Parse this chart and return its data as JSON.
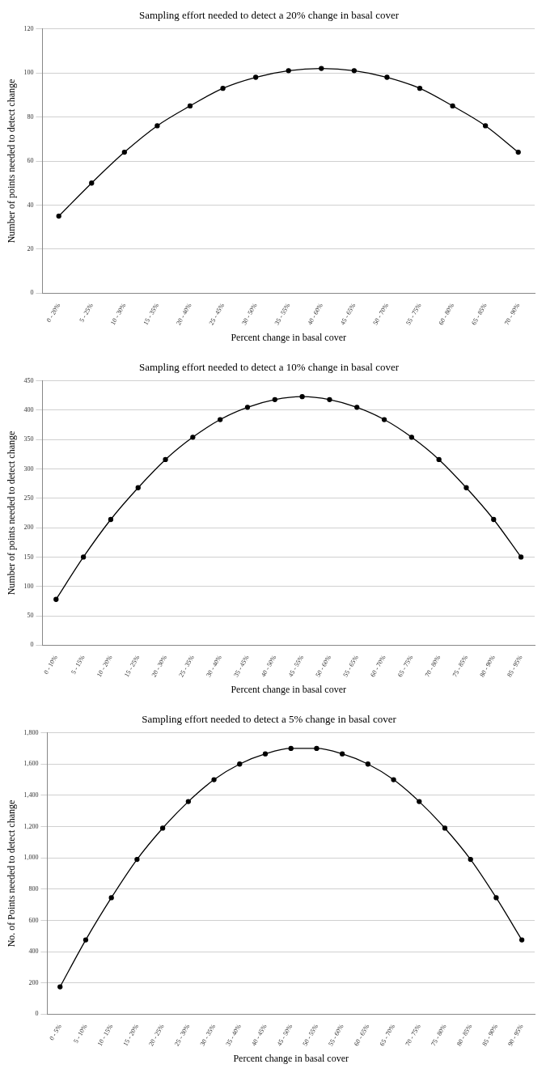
{
  "chart_data": [
    {
      "type": "line",
      "title": "Sampling effort needed to detect a 20% change in basal cover",
      "xlabel": "Percent change in basal cover",
      "ylabel": "Number of points needed to detect change",
      "categories": [
        "0 - 20%",
        "5 - 25%",
        "10 - 30%",
        "15 - 35%",
        "20 - 40%",
        "25 - 45%",
        "30 - 50%",
        "35 - 55%",
        "40 - 60%",
        "45 - 65%",
        "50 - 70%",
        "55 - 75%",
        "60 - 80%",
        "65 - 85%",
        "70 - 90%"
      ],
      "series": [
        {
          "color": "#000000",
          "values": [
            35,
            50,
            64,
            76,
            85,
            93,
            98,
            101,
            102,
            101,
            98,
            93,
            85,
            76,
            64
          ]
        }
      ],
      "ylim": [
        0,
        120
      ],
      "yticks": [
        0,
        20,
        40,
        60,
        80,
        100,
        120
      ],
      "grid": "y",
      "legend": false,
      "marker": "circle",
      "line_style": "solid"
    },
    {
      "type": "line",
      "title": "Sampling effort needed to detect a 10% change in basal cover",
      "xlabel": "Percent change in basal cover",
      "ylabel": "Number of points needed to detect change",
      "categories": [
        "0 - 10%",
        "5 - 15%",
        "10 - 20%",
        "15 - 25%",
        "20 - 30%",
        "25 - 35%",
        "30 - 40%",
        "35 - 45%",
        "40 - 50%",
        "45 - 55%",
        "50 - 60%",
        "55 - 65%",
        "60 - 70%",
        "65 - 75%",
        "70 - 80%",
        "75 - 85%",
        "80 - 90%",
        "85 - 95%"
      ],
      "series": [
        {
          "color": "#000000",
          "values": [
            78,
            150,
            214,
            268,
            316,
            354,
            384,
            405,
            418,
            423,
            418,
            405,
            384,
            354,
            316,
            268,
            214,
            150
          ]
        }
      ],
      "ylim": [
        0,
        450
      ],
      "yticks": [
        0,
        50,
        100,
        150,
        200,
        250,
        300,
        350,
        400,
        450
      ],
      "grid": "y",
      "legend": false,
      "marker": "circle",
      "line_style": "solid"
    },
    {
      "type": "line",
      "title": "Sampling effort needed to detect a 5% change in basal cover",
      "xlabel": "Percent change in basal cover",
      "ylabel": "No. of Points needed to detect change",
      "categories": [
        "0 - 5%",
        "5 - 10%",
        "10 - 15%",
        "15 - 20%",
        "20 - 25%",
        "25 - 30%",
        "30 - 35%",
        "35 - 40%",
        "40 - 45%",
        "45 - 50%",
        "50 - 55%",
        "55 - 60%",
        "60 - 65%",
        "65 - 70%",
        "70 - 75%",
        "75 - 80%",
        "80 - 85%",
        "85 - 90%",
        "90 - 95%"
      ],
      "series": [
        {
          "color": "#000000",
          "values": [
            175,
            475,
            745,
            990,
            1190,
            1360,
            1500,
            1600,
            1665,
            1700,
            1700,
            1665,
            1600,
            1500,
            1360,
            1190,
            990,
            745,
            475
          ]
        }
      ],
      "ylim": [
        0,
        1800
      ],
      "yticks": [
        0,
        200,
        400,
        600,
        800,
        {
          "value": 1000,
          "label": "1,000"
        },
        {
          "value": 1200,
          "label": "1,200"
        },
        {
          "value": 1400,
          "label": "1,400"
        },
        {
          "value": 1600,
          "label": "1,600"
        },
        {
          "value": 1800,
          "label": "1,800"
        }
      ],
      "grid": "y",
      "legend": false,
      "marker": "circle",
      "line_style": "solid"
    }
  ]
}
